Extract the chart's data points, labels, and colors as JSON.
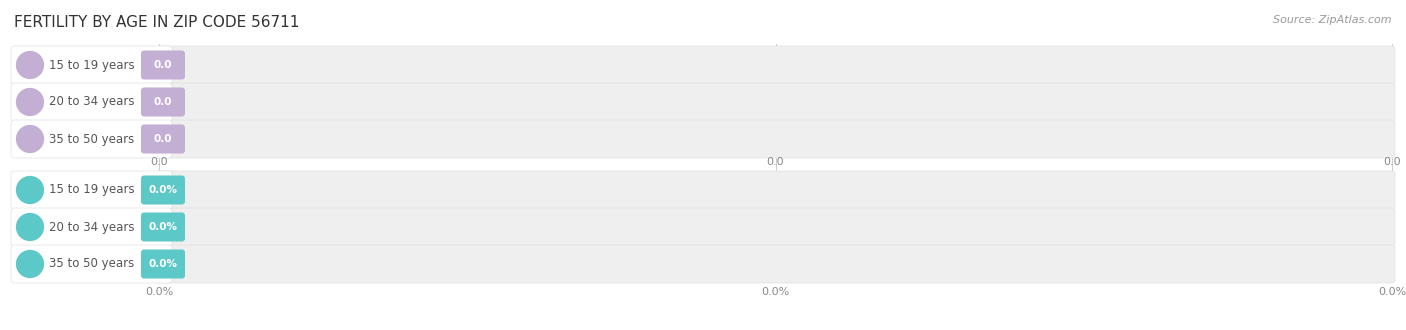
{
  "title": "FERTILITY BY AGE IN ZIP CODE 56711",
  "source": "Source: ZipAtlas.com",
  "background_color": "#ffffff",
  "group1": {
    "bar_color": "#c4afd4",
    "bar_bg": "#efefef",
    "categories": [
      "15 to 19 years",
      "20 to 34 years",
      "35 to 50 years"
    ],
    "value_labels": [
      "0.0",
      "0.0",
      "0.0"
    ],
    "tick_labels": [
      "0.0",
      "0.0",
      "0.0"
    ]
  },
  "group2": {
    "bar_color": "#5dc8c8",
    "bar_bg": "#efefef",
    "categories": [
      "15 to 19 years",
      "20 to 34 years",
      "35 to 50 years"
    ],
    "value_labels": [
      "0.0%",
      "0.0%",
      "0.0%"
    ],
    "tick_labels": [
      "0.0%",
      "0.0%",
      "0.0%"
    ]
  },
  "title_fontsize": 11,
  "label_fontsize": 8.5,
  "value_fontsize": 7.5,
  "tick_fontsize": 8,
  "source_fontsize": 8
}
